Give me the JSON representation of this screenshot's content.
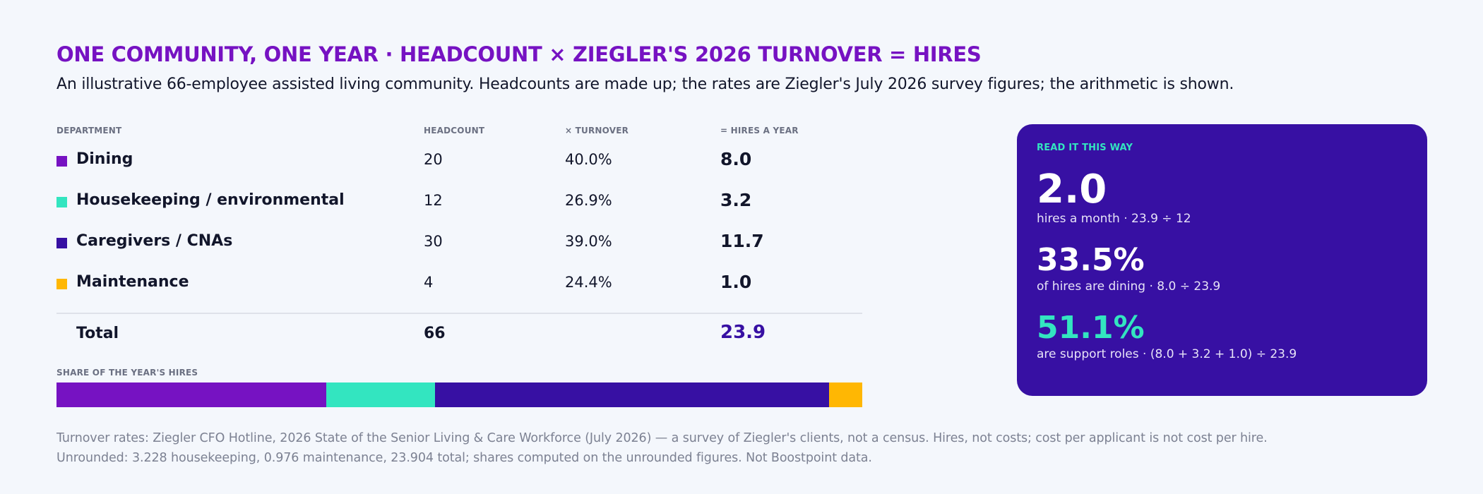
{
  "title": "ONE COMMUNITY, ONE YEAR · HEADCOUNT × ZIEGLER'S 2026 TURNOVER = HIRES",
  "subtitle": "An illustrative 66-employee assisted living community. Headcounts are made up; the rates are Ziegler's July 2026 survey figures; the arithmetic is shown.",
  "table": {
    "headers": {
      "department": "DEPARTMENT",
      "headcount": "HEADCOUNT",
      "turnover": "× TURNOVER",
      "hires": "= HIRES A YEAR"
    },
    "rows": [
      {
        "department": "Dining",
        "headcount": "20",
        "turnover": "40.0%",
        "hires": "8.0",
        "color": "#7612c2"
      },
      {
        "department": "Housekeeping / environmental",
        "headcount": "12",
        "turnover": "26.9%",
        "hires": "3.2",
        "color": "#33e5c0"
      },
      {
        "department": "Caregivers / CNAs",
        "headcount": "30",
        "turnover": "39.0%",
        "hires": "11.7",
        "color": "#3710a3"
      },
      {
        "department": "Maintenance",
        "headcount": "4",
        "turnover": "24.4%",
        "hires": "1.0",
        "color": "#ffb703"
      }
    ],
    "total": {
      "label": "Total",
      "headcount": "66",
      "hires": "23.9"
    }
  },
  "share": {
    "label": "SHARE OF THE YEAR'S HIRES",
    "segments": [
      {
        "name": "Dining",
        "value": 8.0,
        "color": "#7612c2"
      },
      {
        "name": "Housekeeping / environmental",
        "value": 3.228,
        "color": "#33e5c0"
      },
      {
        "name": "Caregivers / CNAs",
        "value": 11.7,
        "color": "#3710a3"
      },
      {
        "name": "Maintenance",
        "value": 0.976,
        "color": "#ffb703"
      }
    ]
  },
  "card": {
    "label": "READ IT THIS WAY",
    "stats": [
      {
        "value": "2.0",
        "caption": "hires a month · 23.9 ÷ 12",
        "color": "#ffffff"
      },
      {
        "value": "33.5%",
        "caption": "of hires are dining · 8.0 ÷ 23.9",
        "color": "#ffffff"
      },
      {
        "value": "51.1%",
        "caption": "are support roles · (8.0 + 3.2 + 1.0) ÷ 23.9",
        "color": "#33e5c0"
      }
    ]
  },
  "notes": [
    "Turnover rates: Ziegler CFO Hotline, 2026 State of the Senior Living & Care Workforce (July 2026) — a survey of Ziegler's clients, not a census. Hires, not costs; cost per applicant is not cost per hire.",
    "Unrounded: 3.228 housekeeping, 0.976 maintenance, 23.904 total; shares computed on the unrounded figures. Not Boostpoint data."
  ]
}
